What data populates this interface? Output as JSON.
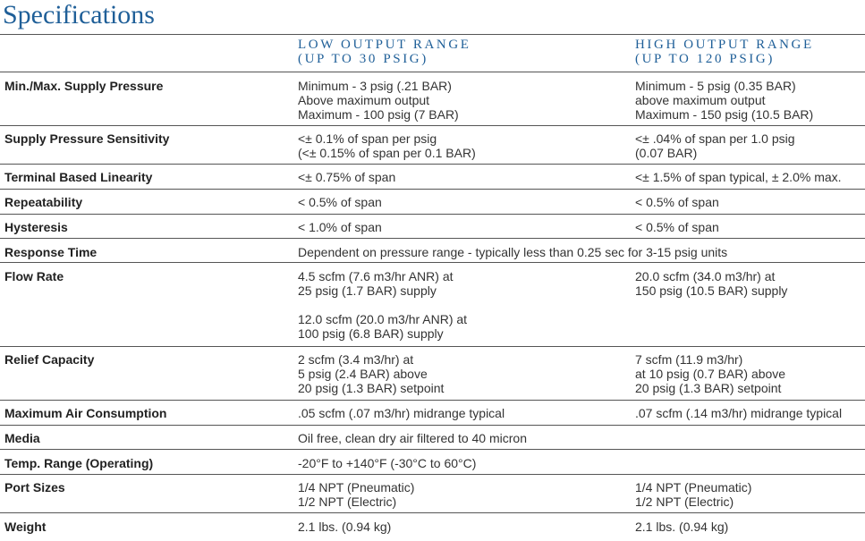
{
  "title": "Specifications",
  "columns": [
    [
      "LOW OUTPUT RANGE",
      "(UP TO 30 PSIG)"
    ],
    [
      "HIGH OUTPUT RANGE",
      "(UP TO 120 PSIG)"
    ]
  ],
  "rows": [
    {
      "label": "Min./Max. Supply Pressure",
      "cells": [
        [
          "Minimum - 3 psig (.21 BAR)",
          "Above maximum output",
          "Maximum - 100 psig (7 BAR)"
        ],
        [
          "Minimum - 5 psig (0.35 BAR)",
          "above maximum output",
          "Maximum - 150 psig (10.5 BAR)"
        ]
      ]
    },
    {
      "label": "Supply Pressure Sensitivity",
      "cells": [
        [
          "<± 0.1% of span per psig",
          "(<± 0.15% of span per 0.1 BAR)"
        ],
        [
          "<± .04% of span per 1.0 psig",
          "(0.07 BAR)"
        ]
      ]
    },
    {
      "label": "Terminal Based Linearity",
      "cells": [
        [
          "<± 0.75% of span"
        ],
        [
          "<± 1.5% of span typical, ± 2.0% max."
        ]
      ]
    },
    {
      "label": "Repeatability",
      "cells": [
        [
          "< 0.5% of span"
        ],
        [
          "< 0.5% of span"
        ]
      ]
    },
    {
      "label": "Hysteresis",
      "cells": [
        [
          "< 1.0% of span"
        ],
        [
          "< 0.5% of span"
        ]
      ]
    },
    {
      "label": "Response Time",
      "cells": [
        [
          "Dependent on pressure range - typically less than 0.25 sec for 3-15 psig units"
        ]
      ]
    },
    {
      "label": "Flow Rate",
      "cells": [
        [
          [
            "4.5 scfm (7.6 m3/hr ANR) at",
            "25 psig (1.7 BAR) supply"
          ],
          [
            "12.0 scfm (20.0 m3/hr ANR) at",
            "100 psig (6.8 BAR) supply"
          ]
        ],
        [
          [
            "20.0 scfm (34.0 m3/hr) at",
            "150 psig (10.5 BAR) supply"
          ]
        ]
      ]
    },
    {
      "label": "Relief Capacity",
      "cells": [
        [
          "2 scfm (3.4 m3/hr) at",
          "5 psig (2.4 BAR) above",
          "20 psig (1.3 BAR) setpoint"
        ],
        [
          "7 scfm (11.9 m3/hr)",
          "at 10 psig (0.7 BAR) above",
          "20 psig (1.3 BAR) setpoint"
        ]
      ]
    },
    {
      "label": "Maximum Air Consumption",
      "cells": [
        [
          ".05 scfm (.07 m3/hr) midrange typical"
        ],
        [
          ".07 scfm (.14 m3/hr) midrange typical"
        ]
      ]
    },
    {
      "label": "Media",
      "cells": [
        [
          "Oil free, clean dry air filtered to 40 micron"
        ]
      ]
    },
    {
      "label": "Temp. Range (Operating)",
      "cells": [
        [
          "-20°F to +140°F (-30°C to 60°C)"
        ]
      ]
    },
    {
      "label": "Port Sizes",
      "cells": [
        [
          "1/4 NPT (Pneumatic)",
          "1/2 NPT (Electric)"
        ],
        [
          "1/4 NPT (Pneumatic)",
          "1/2 NPT (Electric)"
        ]
      ]
    },
    {
      "label": "Weight",
      "cells": [
        [
          "2.1 lbs. (0.94 kg)"
        ],
        [
          "2.1 lbs. (0.94 kg)"
        ]
      ]
    }
  ]
}
